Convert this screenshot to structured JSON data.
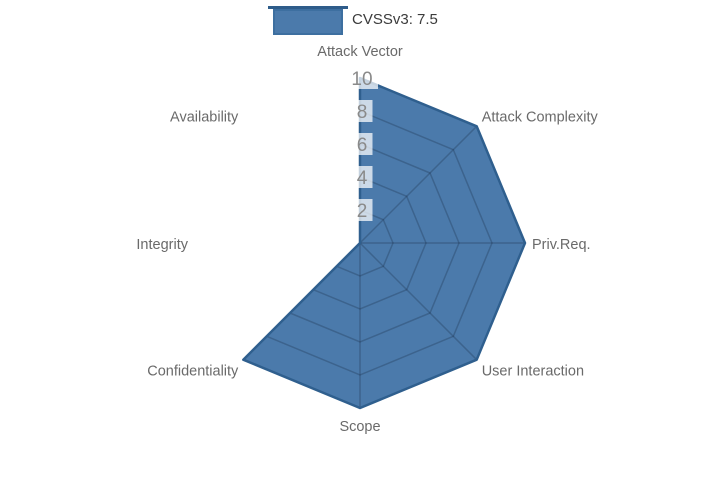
{
  "legend": {
    "label": "CVSSv3: 7.5",
    "swatch_fill": "#4b7aab",
    "swatch_border": "#3d6fa0",
    "line_color": "#2e5c8a",
    "text_color": "#3b3b3b"
  },
  "chart_data": {
    "type": "radar",
    "title": "CVSSv3: 7.5",
    "categories": [
      "Attack Vector",
      "Attack Complexity",
      "Priv.Req.",
      "User Interaction",
      "Scope",
      "Confidentiality",
      "Integrity",
      "Availability"
    ],
    "series": [
      {
        "name": "CVSSv3: 7.5",
        "values": [
          10,
          10,
          10,
          10,
          10,
          10,
          0,
          0
        ],
        "fill_color": "#4b7aab",
        "line_color": "#2f5f8e"
      }
    ],
    "radial_ticks": [
      2,
      4,
      6,
      8,
      10
    ],
    "radial_range": [
      0,
      10
    ],
    "rotation": "clockwise",
    "start_axis_position": "top",
    "grid_shape": "linear",
    "grid_visible": "inside fill only",
    "grid_color": "rgba(20,40,65,0.28)",
    "tick_label_bg": "rgba(255,255,255,0.72)",
    "tick_text_color": "#8a8a8a",
    "category_text_color": "#6a6a6a",
    "legend_position": "top-center"
  }
}
